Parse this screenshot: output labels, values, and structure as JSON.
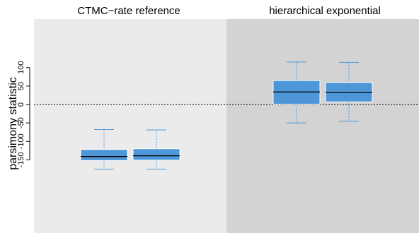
{
  "chart_data": {
    "type": "box",
    "ylabel": "parsimony statistic",
    "ylim": [
      -175,
      115
    ],
    "yticks": [
      -150,
      -100,
      -50,
      0,
      50,
      100
    ],
    "reference_line": 0,
    "panels": [
      {
        "title": "CTMC−rate reference",
        "background": "#ebebeb",
        "boxes": [
          {
            "whisker_low": -175,
            "q1": -152,
            "median": -141,
            "q3": -122,
            "whisker_high": -68
          },
          {
            "whisker_low": -175,
            "q1": -151,
            "median": -139,
            "q3": -120,
            "whisker_high": -69
          }
        ]
      },
      {
        "title": "hierarchical exponential",
        "background": "#d3d3d3",
        "boxes": [
          {
            "whisker_low": -50,
            "q1": 1,
            "median": 34,
            "q3": 65,
            "whisker_high": 115
          },
          {
            "whisker_low": -45,
            "q1": 7,
            "median": 33,
            "q3": 60,
            "whisker_high": 114
          }
        ]
      }
    ],
    "colors": {
      "box_fill": "#4d97d8",
      "box_border": "#ffffff",
      "whisker": "#4d97d8",
      "median": "#000000",
      "reference_line": "#000000"
    }
  }
}
